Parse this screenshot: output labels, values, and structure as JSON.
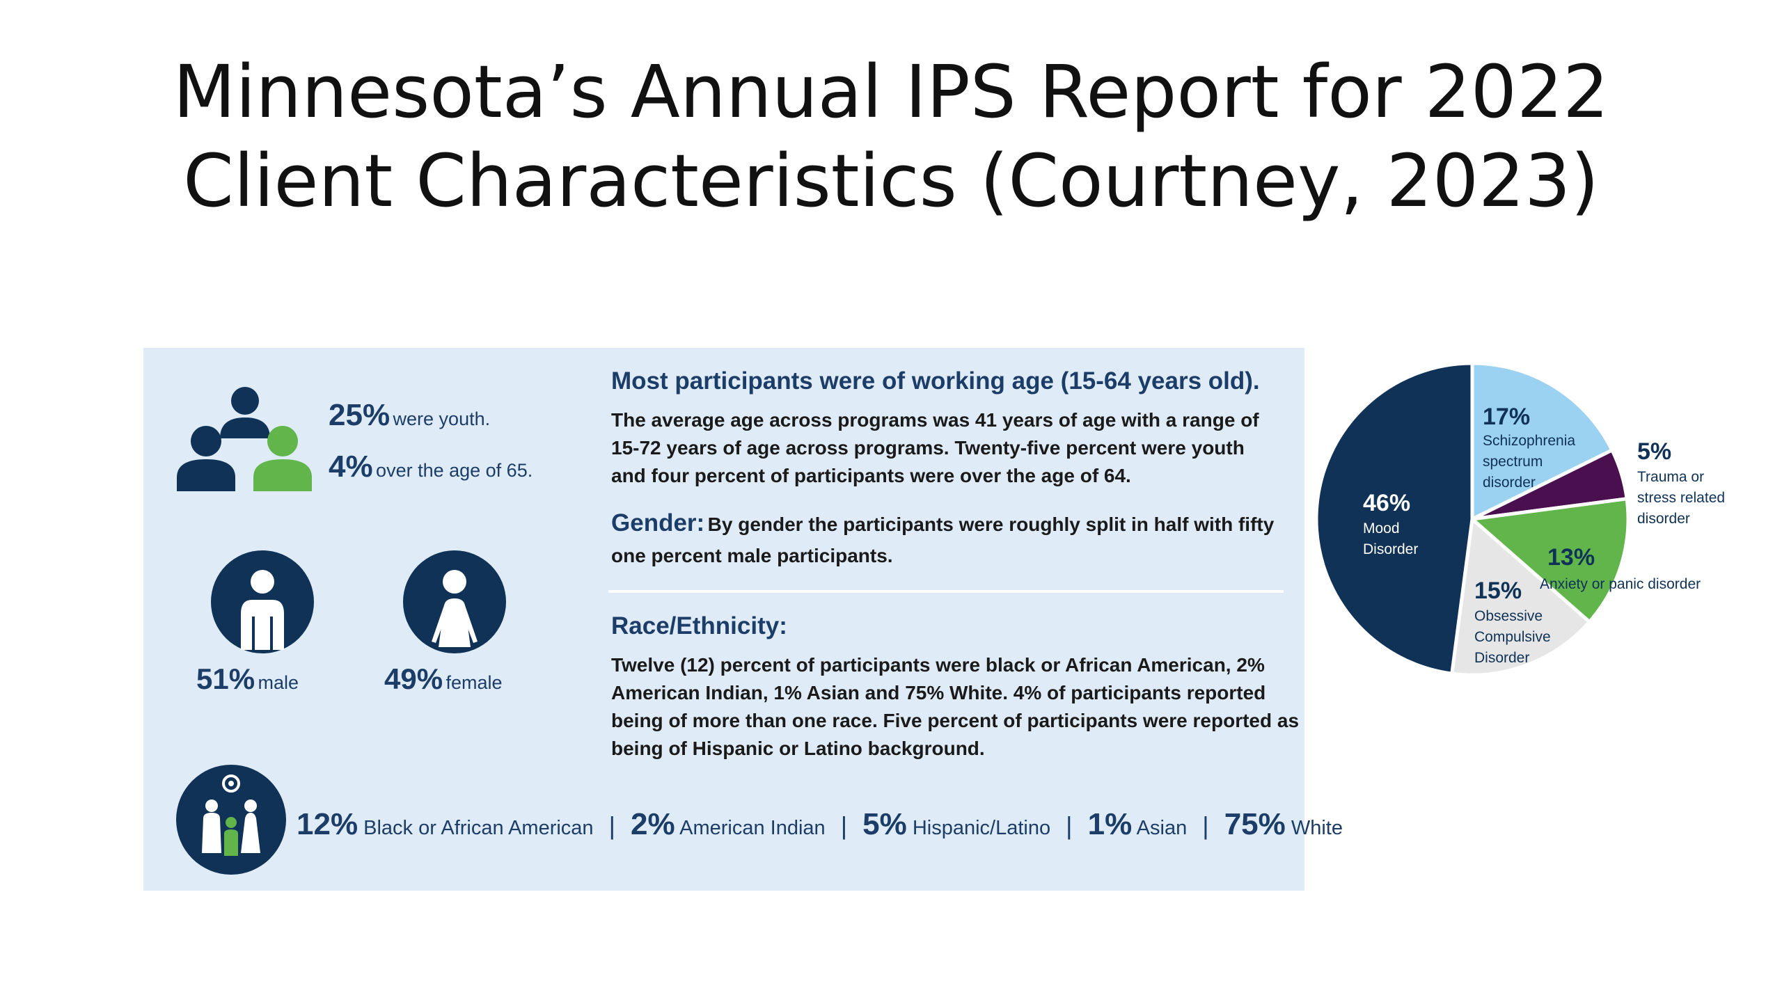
{
  "slide": {
    "title_line1": "Minnesota’s Annual IPS Report for 2022",
    "title_line2": "Client Characteristics (Courtney, 2023)"
  },
  "infographic": {
    "youth_pct": "25%",
    "youth_label": "were youth.",
    "over65_pct": "4%",
    "over65_label": "over the age of 65.",
    "male_pct": "51%",
    "male_label": "male",
    "female_pct": "49%",
    "female_label": "female",
    "age_heading": "Most participants were of working age (15-64 years old).",
    "age_text": "The average age across programs was 41 years of age with a range of 15-72 years of age across programs.  Twenty-five percent were youth and four percent of participants were over the age of 64.",
    "gender_heading": "Gender:",
    "gender_text": "By gender the participants were roughly split in half with fifty one percent male participants.",
    "race_heading": "Race/Ethnicity:",
    "race_text": "Twelve (12) percent of participants were black or African American, 2% American Indian, 1% Asian and 75% White.  4% of participants reported being of more than one race.  Five percent of participants were reported as being of Hispanic or Latino background.",
    "race_stats": [
      {
        "pct": "12%",
        "label": "Black or African American"
      },
      {
        "pct": "2%",
        "label": "American Indian"
      },
      {
        "pct": "5%",
        "label": "Hispanic/Latino"
      },
      {
        "pct": "1%",
        "label": "Asian"
      },
      {
        "pct": "75%",
        "label": "White"
      }
    ],
    "race_separator": "|"
  },
  "colors": {
    "navy": "#0f3256",
    "green": "#62b54b",
    "light_blue": "#9bd1f1",
    "purple": "#4a0f4f",
    "gray": "#e6e6e6",
    "panel_bg": "#dfecf8"
  },
  "chart_data": {
    "type": "pie",
    "title": "",
    "slices": [
      {
        "name": "Schizophrenia spectrum disorder",
        "label_lines": [
          "Schizophrenia",
          "spectrum",
          "disorder"
        ],
        "value": 17,
        "label": "17%",
        "color": "#9bd1f1"
      },
      {
        "name": "Trauma or stress related disorder",
        "label_lines": [
          "Trauma or",
          "stress related",
          "disorder"
        ],
        "value": 5,
        "label": "5%",
        "color": "#4a0f4f"
      },
      {
        "name": "Anxiety or panic disorder",
        "label_lines": [
          "Anxiety or panic disorder"
        ],
        "value": 13,
        "label": "13%",
        "color": "#62b54b"
      },
      {
        "name": "Obsessive Compulsive Disorder",
        "label_lines": [
          "Obsessive",
          "Compulsive",
          "Disorder"
        ],
        "value": 15,
        "label": "15%",
        "color": "#e6e6e6"
      },
      {
        "name": "Mood Disorder",
        "label_lines": [
          "Mood",
          "Disorder"
        ],
        "value": 46,
        "label": "46%",
        "color": "#0f3256"
      }
    ]
  }
}
